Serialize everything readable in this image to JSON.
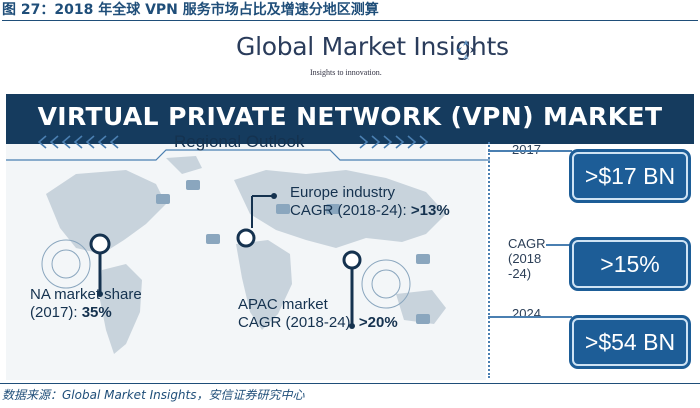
{
  "figure_title": "图 27：2018 年全球 VPN 服务市场占比及增速分地区测算",
  "logo": {
    "name": "Global Market Insights",
    "tagline": "Insights to innovation."
  },
  "banner_title": "VIRTUAL PRIVATE NETWORK (VPN) MARKET",
  "regional_outlook": "Regional Outlook",
  "annotations": {
    "europe": {
      "line1": "Europe industry",
      "line2": "CAGR (2018-24): ",
      "value": ">13%"
    },
    "na": {
      "line1": "NA market share",
      "line2": "(2017): ",
      "value": "35%"
    },
    "apac": {
      "line1": "APAC market",
      "line2": "CAGR (2018-24): ",
      "value": ">20%"
    }
  },
  "timeline": {
    "year_2017": "2017",
    "cagr_label": "CAGR",
    "cagr_range": "(2018",
    "cagr_range2": "-24)",
    "year_2024": "2024"
  },
  "stats": {
    "value_2017": ">$17 BN",
    "cagr": ">15%",
    "value_2024": ">$54 BN"
  },
  "source": "数据来源：Global Market Insights，安信证券研究中心",
  "colors": {
    "navy": "#153b5e",
    "box_blue": "#1d5d97",
    "accent_line": "#4a7fb1"
  }
}
